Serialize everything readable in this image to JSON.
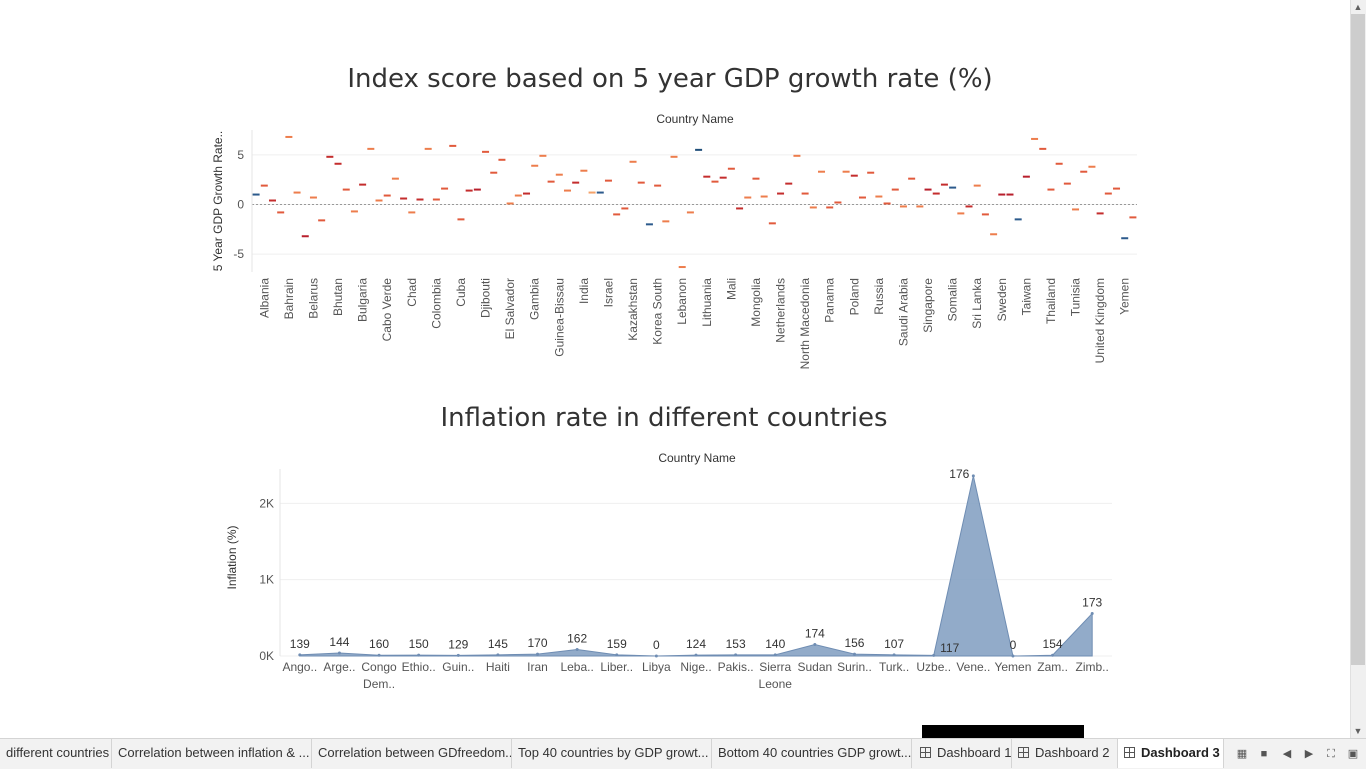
{
  "dashboard": {
    "title1": "Index score based on 5 year GDP growth rate (%)",
    "title2": "Inflation rate in different countries",
    "header1": "Country Name",
    "header2": "Country Name"
  },
  "chart_data": [
    {
      "type": "scatter",
      "title": "Index score based on 5 year GDP growth rate (%)",
      "xlabel": "Country Name",
      "ylabel": "5 Year GDP Growth Rate..",
      "ylim": [
        -6.8,
        7.5
      ],
      "yticks": [
        5,
        0,
        -5
      ],
      "reference_line": 0,
      "visible_labels": [
        "Albania",
        "Bahrain",
        "Belarus",
        "Bhutan",
        "Bulgaria",
        "Cabo Verde",
        "Chad",
        "Colombia",
        "Cuba",
        "Djibouti",
        "El Salvador",
        "Gambia",
        "Guinea-Bissau",
        "India",
        "Israel",
        "Kazakhstan",
        "Korea South",
        "Lebanon",
        "Lithuania",
        "Mali",
        "Mongolia",
        "Netherlands",
        "North Macedonia",
        "Panama",
        "Poland",
        "Russia",
        "Saudi Arabia",
        "Singapore",
        "Somalia",
        "Sri Lanka",
        "Sweden",
        "Taiwan",
        "Thailand",
        "Tunisia",
        "United Kingdom",
        "Yemen"
      ],
      "values": [
        1.0,
        1.9,
        0.4,
        -0.8,
        6.8,
        1.2,
        -3.2,
        0.7,
        -1.6,
        4.8,
        4.1,
        1.5,
        -0.7,
        2.0,
        5.6,
        0.4,
        0.9,
        2.6,
        0.6,
        -0.8,
        0.5,
        5.6,
        0.5,
        1.6,
        5.9,
        -1.5,
        1.4,
        1.5,
        5.3,
        3.2,
        4.5,
        0.1,
        0.9,
        1.1,
        3.9,
        4.9,
        2.3,
        3.0,
        1.4,
        2.2,
        3.4,
        1.2,
        1.2,
        2.4,
        -1.0,
        -0.4,
        4.3,
        2.2,
        -2.0,
        1.9,
        -1.7,
        4.8,
        -6.3,
        -0.8,
        5.5,
        2.8,
        2.3,
        2.7,
        3.6,
        -0.4,
        0.7,
        2.6,
        0.8,
        -1.9,
        1.1,
        2.1,
        4.9,
        1.1,
        -0.3,
        3.3,
        -0.3,
        0.2,
        3.3,
        2.9,
        0.7,
        3.2,
        0.8,
        0.1,
        1.5,
        -0.2,
        2.6,
        -0.2,
        1.5,
        1.1,
        2.0,
        1.7,
        -0.9,
        -0.2,
        1.9,
        -1.0,
        -3.0,
        1.0,
        1.0,
        -1.5,
        2.8,
        6.6,
        5.6,
        1.5,
        4.1,
        2.1,
        -0.5,
        3.3,
        3.8,
        -0.9,
        1.1,
        1.6,
        -3.4,
        -1.3
      ],
      "colors": [
        "#2c5a8c",
        "#e15a3c",
        "#c42d2d",
        "#e15a3c",
        "#ed7d4c",
        "#ed7d4c",
        "#b81f2c",
        "#ed7d4c",
        "#e15a3c",
        "#c42d2d",
        "#c42d2d",
        "#e15a3c",
        "#ed7d4c",
        "#c42d2d",
        "#ed7d4c",
        "#ed7d4c",
        "#e15a3c",
        "#ed7d4c",
        "#c42d2d",
        "#ed7d4c",
        "#c42d2d",
        "#ed7d4c",
        "#e15a3c",
        "#e15a3c",
        "#e15a3c",
        "#e15a3c",
        "#c42d2d",
        "#b81f2c",
        "#e15a3c",
        "#e15a3c",
        "#e15a3c",
        "#ed7d4c",
        "#ed7d4c",
        "#c42d2d",
        "#ed7d4c",
        "#ed7d4c",
        "#e15a3c",
        "#ed7d4c",
        "#ed7d4c",
        "#c42d2d",
        "#ed7d4c",
        "#f4a26a",
        "#2c5a8c",
        "#e15a3c",
        "#e15a3c",
        "#e15a3c",
        "#ed7d4c",
        "#e15a3c",
        "#2c5a8c",
        "#e15a3c",
        "#ed7d4c",
        "#ed7d4c",
        "#ed7d4c",
        "#ed7d4c",
        "#1f4e79",
        "#c42d2d",
        "#e15a3c",
        "#c42d2d",
        "#e15a3c",
        "#c42d2d",
        "#ed7d4c",
        "#e15a3c",
        "#ed7d4c",
        "#e15a3c",
        "#c42d2d",
        "#c42d2d",
        "#ed7d4c",
        "#e15a3c",
        "#ed7d4c",
        "#ed7d4c",
        "#e15a3c",
        "#e15a3c",
        "#ed7d4c",
        "#c42d2d",
        "#e15a3c",
        "#e15a3c",
        "#ed7d4c",
        "#e15a3c",
        "#e15a3c",
        "#ed7d4c",
        "#e15a3c",
        "#ed7d4c",
        "#b81f2c",
        "#c42d2d",
        "#c42d2d",
        "#2c5a8c",
        "#ed7d4c",
        "#c42d2d",
        "#ed7d4c",
        "#e15a3c",
        "#ed7d4c",
        "#b81f2c",
        "#b81f2c",
        "#2c5a8c",
        "#b81f2c",
        "#ed7d4c",
        "#e15a3c",
        "#e15a3c",
        "#e15a3c",
        "#e15a3c",
        "#ed7d4c",
        "#e15a3c",
        "#ed7d4c",
        "#c42d2d",
        "#e15a3c",
        "#e15a3c",
        "#2c5a8c",
        "#e15a3c"
      ]
    },
    {
      "type": "area",
      "title": "Inflation rate in different countries",
      "xlabel": "Country Name",
      "ylabel": "Inflation (%)",
      "ylim": [
        0,
        2450
      ],
      "yticks": [
        {
          "v": 2000,
          "label": "2K"
        },
        {
          "v": 1000,
          "label": "1K"
        },
        {
          "v": 0,
          "label": "0K"
        }
      ],
      "color": "#7f9cc0",
      "categories": [
        "Ango..",
        "Arge..",
        "Congo Dem..",
        "Ethio..",
        "Guin..",
        "Haiti",
        "Iran",
        "Leba..",
        "Liber..",
        "Libya",
        "Nige..",
        "Pakis..",
        "Sierra Leone",
        "Sudan",
        "Surin..",
        "Turk..",
        "Uzbe..",
        "Vene..",
        "Yemen",
        "Zam..",
        "Zimb.."
      ],
      "values": [
        15,
        40,
        10,
        12,
        8,
        15,
        25,
        85,
        15,
        0,
        12,
        14,
        15,
        150,
        25,
        15,
        8,
        2360,
        0,
        10,
        557
      ],
      "data_labels": [
        "139",
        "144",
        "160",
        "150",
        "129",
        "145",
        "170",
        "162",
        "159",
        "0",
        "124",
        "153",
        "140",
        "174",
        "156",
        "107",
        "117",
        "176",
        "0",
        "154",
        "173"
      ]
    }
  ],
  "tabs": [
    {
      "label": "different countries",
      "icon": "none"
    },
    {
      "label": "Correlation between inflation & ...",
      "icon": "none"
    },
    {
      "label": "Correlation between GDfreedom...",
      "icon": "none"
    },
    {
      "label": "Top 40 countries by GDP growt...",
      "icon": "none"
    },
    {
      "label": "Bottom 40 countries GDP growt...",
      "icon": "none"
    },
    {
      "label": "Dashboard 1",
      "icon": "dashboard-icon"
    },
    {
      "label": "Dashboard 2",
      "icon": "dashboard-icon"
    },
    {
      "label": "Dashboard 3",
      "icon": "dashboard-icon"
    }
  ],
  "active_tab": "Dashboard 3"
}
